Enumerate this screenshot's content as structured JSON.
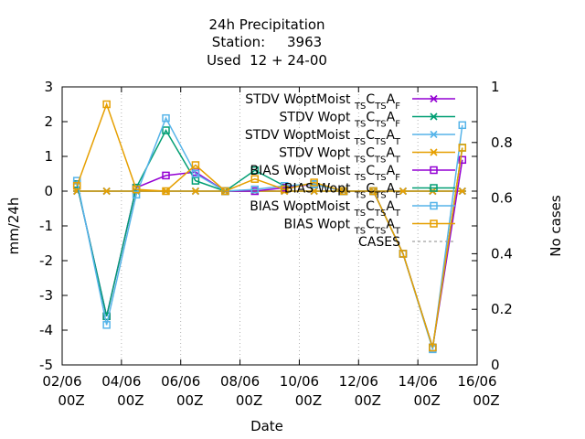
{
  "chart_data": {
    "type": "line",
    "title_lines": [
      "24h Precipitation",
      "Station:     3963",
      "Used  12 + 24-00"
    ],
    "xlabel": "Date",
    "ylabel": "mm/24h",
    "y2label": "No cases",
    "ylim": [
      -5,
      3
    ],
    "y2lim": [
      0,
      1
    ],
    "xlim": [
      0,
      14
    ],
    "xticks": [
      {
        "pos": 0,
        "line1": "02/06",
        "line2": "00Z"
      },
      {
        "pos": 2,
        "line1": "04/06",
        "line2": "00Z"
      },
      {
        "pos": 4,
        "line1": "06/06",
        "line2": "00Z"
      },
      {
        "pos": 6,
        "line1": "08/06",
        "line2": "00Z"
      },
      {
        "pos": 8,
        "line1": "10/06",
        "line2": "00Z"
      },
      {
        "pos": 10,
        "line1": "12/06",
        "line2": "00Z"
      },
      {
        "pos": 12,
        "line1": "14/06",
        "line2": "00Z"
      },
      {
        "pos": 14,
        "line1": "16/06",
        "line2": "00Z"
      }
    ],
    "yticks": [
      "3",
      "2",
      "1",
      "0",
      "-1",
      "-2",
      "-3",
      "-4",
      "-5"
    ],
    "y2ticks": [
      "1",
      "0.8",
      "0.6",
      "0.4",
      "0.2",
      "0"
    ],
    "x": [
      0.5,
      1.5,
      2.5,
      3.5,
      4.5,
      5.5,
      6.5,
      7.5,
      8.5,
      9.5,
      10.5,
      11.5,
      12.5,
      13.5
    ],
    "series": [
      {
        "name": "STDV WoptMoist",
        "sub1": "TS",
        "sub2": "TS",
        "sub3": "F",
        "color": "#9400d3",
        "marker": "x",
        "values": [
          0,
          0,
          0,
          0,
          0,
          0,
          0,
          0,
          0,
          0,
          0,
          0,
          0,
          0
        ]
      },
      {
        "name": "STDV Wopt",
        "sub1": "TS",
        "sub2": "TS",
        "sub3": "F",
        "color": "#009e73",
        "marker": "x",
        "values": [
          0,
          0,
          0,
          0,
          0,
          0,
          0,
          0,
          0,
          0,
          0,
          0,
          0,
          0
        ]
      },
      {
        "name": "STDV WoptMoist",
        "sub1": "TS",
        "sub2": "TS",
        "sub3": "T",
        "color": "#56b4e9",
        "marker": "x",
        "values": [
          0,
          0,
          0,
          0,
          0,
          0,
          0,
          0,
          0,
          0,
          0,
          0,
          0,
          0
        ]
      },
      {
        "name": "STDV Wopt",
        "sub1": "TS",
        "sub2": "TS",
        "sub3": "T",
        "color": "#e69f00",
        "marker": "x",
        "values": [
          0,
          0,
          0,
          0,
          0,
          0,
          0,
          0,
          0,
          0,
          0,
          0,
          0,
          0
        ]
      },
      {
        "name": "BIAS WoptMoist",
        "sub1": "TS",
        "sub2": "TS",
        "sub3": "F",
        "color": "#9400d3",
        "marker": "sq",
        "values": [
          0.2,
          -3.6,
          0.1,
          0.45,
          0.55,
          0.0,
          0.0,
          0.1,
          0.2,
          0.0,
          0.0,
          -1.8,
          -4.5,
          0.9
        ]
      },
      {
        "name": "BIAS Wopt",
        "sub1": "TS",
        "sub2": "TS",
        "sub3": "F",
        "color": "#009e73",
        "marker": "sq",
        "values": [
          0.2,
          -3.6,
          0.1,
          1.75,
          0.3,
          0.0,
          0.6,
          0.15,
          0.2,
          0.0,
          0.0,
          -1.8,
          -4.5,
          1.25
        ]
      },
      {
        "name": "BIAS WoptMoist",
        "sub1": "TS",
        "sub2": "TS",
        "sub3": "T",
        "color": "#56b4e9",
        "marker": "sq",
        "values": [
          0.3,
          -3.85,
          -0.1,
          2.1,
          0.5,
          0.0,
          0.05,
          0.15,
          0.2,
          0.0,
          0.0,
          -1.8,
          -4.55,
          1.9
        ]
      },
      {
        "name": "BIAS Wopt",
        "sub1": "TS",
        "sub2": "TS",
        "sub3": "T",
        "color": "#e69f00",
        "marker": "sq",
        "values": [
          0.15,
          2.5,
          0.05,
          0.0,
          0.75,
          0.0,
          0.35,
          0.05,
          0.25,
          0.0,
          0.0,
          -1.8,
          -4.5,
          1.25
        ]
      }
    ],
    "cases_label": "CASES",
    "cases_color": "#a0a0a0"
  }
}
